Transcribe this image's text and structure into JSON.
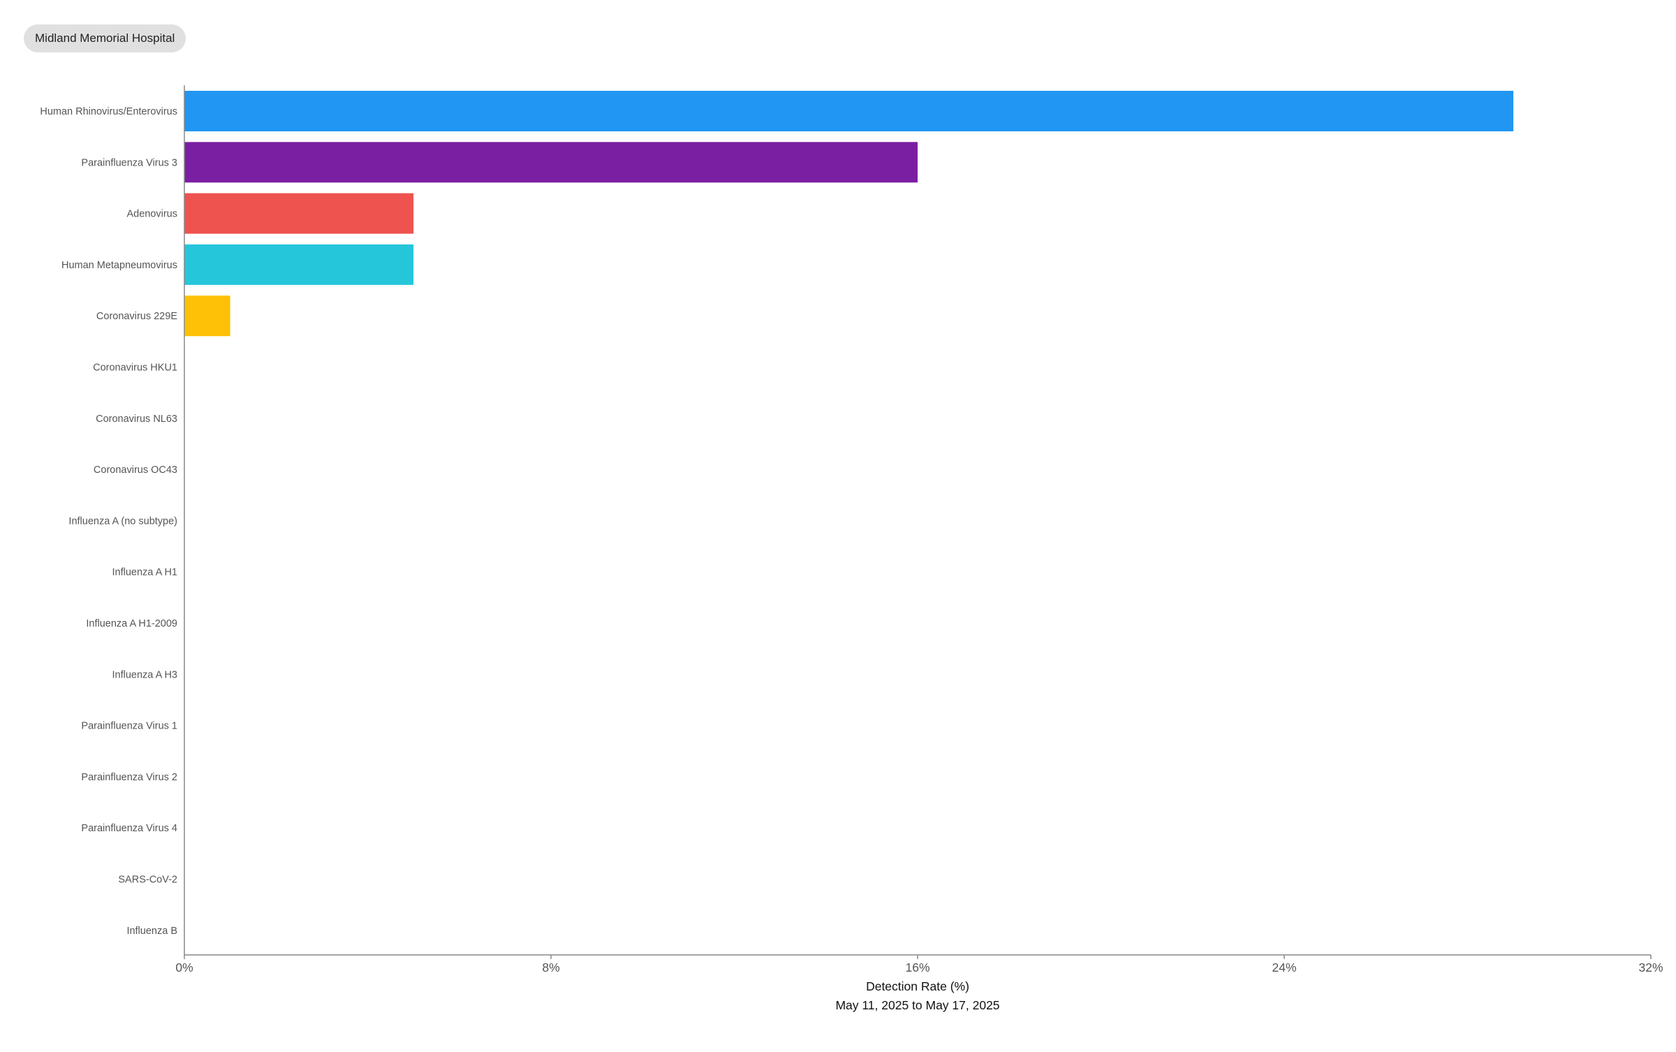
{
  "header": {
    "hospital_label": "Midland Memorial Hospital"
  },
  "chart_data": {
    "type": "bar",
    "orientation": "horizontal",
    "categories": [
      "Human Rhinovirus/Enterovirus",
      "Parainfluenza Virus 3",
      "Adenovirus",
      "Human Metapneumovirus",
      "Coronavirus 229E",
      "Coronavirus HKU1",
      "Coronavirus NL63",
      "Coronavirus OC43",
      "Influenza A (no subtype)",
      "Influenza A H1",
      "Influenza A H1-2009",
      "Influenza A H3",
      "Parainfluenza Virus 1",
      "Parainfluenza Virus 2",
      "Parainfluenza Virus 4",
      "SARS-CoV-2",
      "Influenza B"
    ],
    "values": [
      29.0,
      16.0,
      5.0,
      5.0,
      1.0,
      0,
      0,
      0,
      0,
      0,
      0,
      0,
      0,
      0,
      0,
      0,
      0
    ],
    "colors": [
      "#2196f3",
      "#7b1fa2",
      "#ef5350",
      "#26c6da",
      "#ffc107",
      "#2196f3",
      "#2196f3",
      "#2196f3",
      "#2196f3",
      "#2196f3",
      "#2196f3",
      "#2196f3",
      "#2196f3",
      "#2196f3",
      "#2196f3",
      "#2196f3",
      "#2196f3"
    ],
    "xlim": [
      0,
      32
    ],
    "xticks": [
      0,
      8,
      16,
      24,
      32
    ],
    "xtick_labels": [
      "0%",
      "8%",
      "16%",
      "24%",
      "32%"
    ],
    "xlabel": "Detection Rate (%)",
    "date_range": "May 11, 2025 to May 17, 2025",
    "grid": false,
    "axis_color": "#888888"
  }
}
